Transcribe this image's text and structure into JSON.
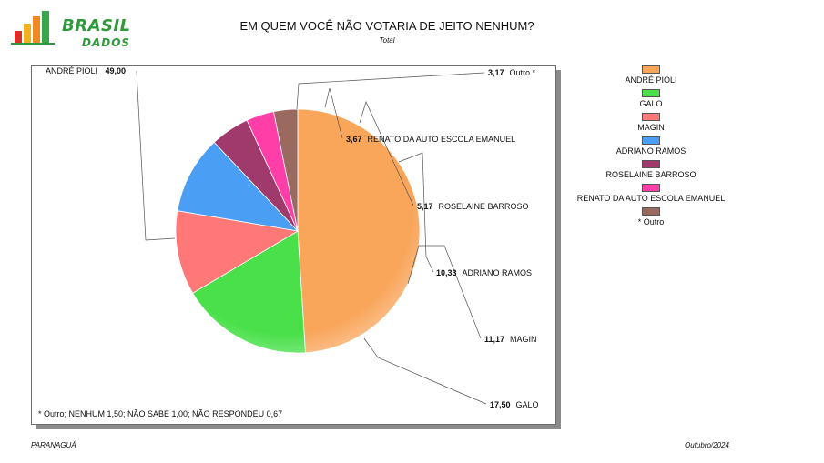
{
  "brand": {
    "line1": "BRASIL",
    "line2": "DADOS"
  },
  "chart_data": {
    "type": "pie",
    "title": "EM QUEM VOCÊ NÃO VOTARIA DE JEITO NENHUM?",
    "subtitle": "Total",
    "slices": [
      {
        "label": "ANDRÉ PIOLI",
        "value": 49.0,
        "value_text": "49,00",
        "color": "#f9a55a"
      },
      {
        "label": "GALO",
        "value": 17.5,
        "value_text": "17,50",
        "color": "#49e04a"
      },
      {
        "label": "MAGIN",
        "value": 11.17,
        "value_text": "11,17",
        "color": "#ff7878"
      },
      {
        "label": "ADRIANO RAMOS",
        "value": 10.33,
        "value_text": "10,33",
        "color": "#4a9ff5"
      },
      {
        "label": "ROSELAINE BARROSO",
        "value": 5.17,
        "value_text": "5,17",
        "color": "#a03a6c"
      },
      {
        "label": "RENATO DA AUTO ESCOLA EMANUEL",
        "value": 3.67,
        "value_text": "3,67",
        "color": "#ff3fa7"
      },
      {
        "label": "Outro *",
        "value": 3.17,
        "value_text": "3,17",
        "color": "#9a6a60"
      }
    ],
    "legend_placement": "right",
    "legend": [
      "ANDRÉ PIOLI",
      "GALO",
      "MAGIN",
      "ADRIANO RAMOS",
      "ROSELAINE BARROSO",
      "RENATO DA AUTO ESCOLA EMANUEL",
      "* Outro"
    ]
  },
  "note": "* Outro; NENHUM 1,50; NÃO SABE 1,00; NÃO RESPONDEU 0,67",
  "footer": {
    "location": "PARANAGUÁ",
    "date": "Outubro/2024"
  }
}
